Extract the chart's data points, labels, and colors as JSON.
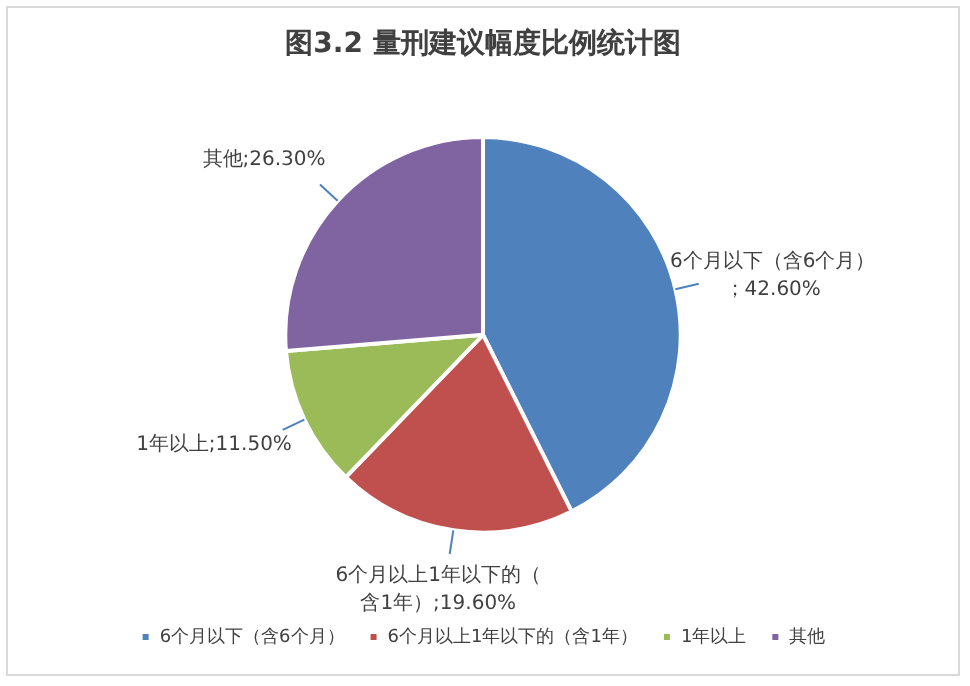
{
  "chart_data": {
    "type": "pie",
    "title": "图3.2 量刑建议幅度比例统计图",
    "categories": [
      "6个月以下（含6个月）",
      "6个月以上1年以下的（含1年）",
      "1年以上",
      "其他"
    ],
    "values": [
      42.6,
      19.6,
      11.5,
      26.3
    ],
    "colors": [
      "#4f81bd",
      "#c0504d",
      "#9bbb59",
      "#8064a2"
    ],
    "value_labels": [
      "6个月以下（含6个月）；42.60%",
      "6个月以上1年以下的（含1年）;19.60%",
      "1年以上;11.50%",
      "其他;26.30%"
    ],
    "legend": "bottom"
  }
}
